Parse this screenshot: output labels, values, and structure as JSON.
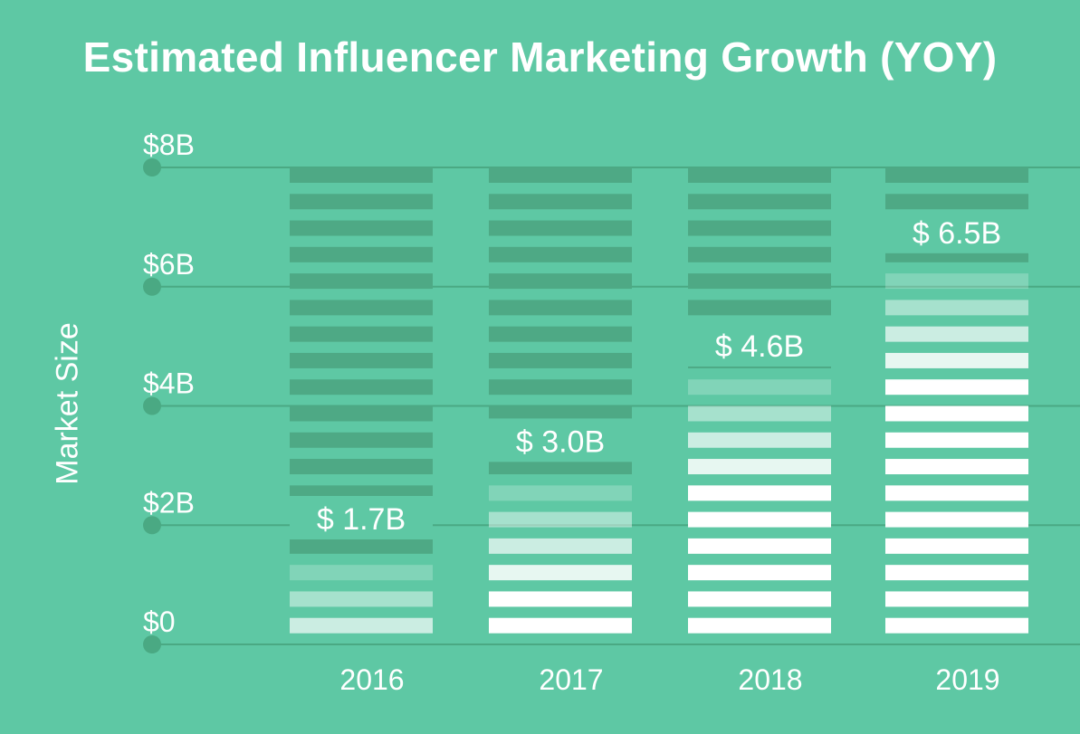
{
  "colors": {
    "background": "#5ec8a4",
    "grid": "#4aa983",
    "bar_empty": "#4ea985",
    "bar_fill": "#ffffff",
    "text": "#ffffff"
  },
  "chart_data": {
    "type": "bar",
    "title": "Estimated Influencer Marketing Growth (YOY)",
    "xlabel": "",
    "ylabel": "Market Size",
    "categories": [
      "2016",
      "2017",
      "2018",
      "2019"
    ],
    "values": [
      1.7,
      3.0,
      4.6,
      6.5
    ],
    "value_labels": [
      "$ 1.7B",
      "$ 3.0B",
      "$ 4.6B",
      "$ 6.5B"
    ],
    "ylim": [
      0,
      8
    ],
    "yticks": [
      0,
      2,
      4,
      6,
      8
    ],
    "ytick_labels": [
      "$0",
      "$2B",
      "$4B",
      "$6B",
      "$8B"
    ],
    "grid": true,
    "legend": "none"
  }
}
